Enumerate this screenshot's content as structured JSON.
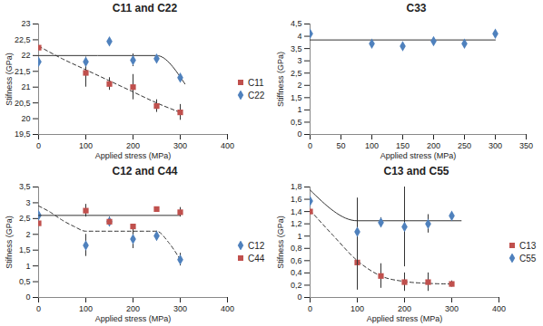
{
  "chart_data": [
    {
      "type": "scatter",
      "title": "C11 and C22",
      "x_label": "Applied stress (MPa)",
      "y_label": "Stifness (GPa)",
      "xlim": [
        0,
        400
      ],
      "xticks": [
        0,
        100,
        200,
        300,
        400
      ],
      "ylim": [
        19.5,
        23
      ],
      "yticks": [
        {
          "value": 19.5,
          "label": "19,5"
        },
        20,
        {
          "value": 20.5,
          "label": "20,5"
        },
        21,
        {
          "value": 21.5,
          "label": "21,5"
        },
        22,
        {
          "value": 22.5,
          "label": "22,5"
        },
        23
      ],
      "legend": "right",
      "x": [
        0,
        100,
        150,
        200,
        250,
        300
      ],
      "series": [
        {
          "name": "C11",
          "color": "#c0504d",
          "marker": "square",
          "values": [
            22.25,
            21.45,
            21.1,
            21.0,
            20.4,
            20.2
          ],
          "errors": [
            null,
            0.45,
            0.2,
            0.4,
            0.2,
            0.25
          ],
          "fit_x": [
            0,
            50,
            100,
            150,
            200,
            250,
            300
          ],
          "fit_values": [
            22.3,
            21.9,
            21.55,
            21.2,
            20.85,
            20.5,
            20.2
          ],
          "line_style": "dashed"
        },
        {
          "name": "C22",
          "color": "#4f81bd",
          "marker": "diamond",
          "values": [
            21.8,
            21.8,
            22.45,
            21.85,
            21.9,
            21.3
          ],
          "errors": [
            null,
            0.15,
            null,
            0.2,
            null,
            0.05
          ],
          "fit_x": [
            0,
            250,
            310
          ],
          "fit_values": [
            22.0,
            22.0,
            21.1
          ],
          "line_style": "solid"
        }
      ]
    },
    {
      "type": "scatter",
      "title": "C33",
      "x_label": "Applied stress (MPa)",
      "y_label": "Stiffness (GPa)",
      "xlim": [
        0,
        350
      ],
      "xticks": [
        0,
        50,
        100,
        150,
        200,
        250,
        300,
        350
      ],
      "ylim": [
        0,
        4.5
      ],
      "yticks": [
        0,
        {
          "value": 0.5,
          "label": "0,5"
        },
        1,
        {
          "value": 1.5,
          "label": "1,5"
        },
        2,
        {
          "value": 2.5,
          "label": "2,5"
        },
        3,
        {
          "value": 3.5,
          "label": "3,5"
        },
        4,
        {
          "value": 4.5,
          "label": "4,5"
        }
      ],
      "x": [
        0,
        100,
        150,
        200,
        250,
        300
      ],
      "series": [
        {
          "color": "#4f81bd",
          "marker": "diamond",
          "values": [
            4.1,
            3.7,
            3.6,
            3.8,
            3.7,
            4.1
          ],
          "errors": [
            null,
            null,
            0.1,
            0.05,
            null,
            null
          ],
          "fit_x": [
            0,
            300
          ],
          "fit_values": [
            3.85,
            3.85
          ],
          "line_style": "solid"
        }
      ]
    },
    {
      "type": "scatter",
      "title": "C12 and C44",
      "x_label": "Applied stress (MPa)",
      "y_label": "Stifness (GPa)",
      "xlim": [
        0,
        400
      ],
      "xticks": [
        0,
        100,
        200,
        300,
        400
      ],
      "ylim": [
        0,
        3.5
      ],
      "yticks": [
        0,
        {
          "value": 0.5,
          "label": "0,5"
        },
        1,
        {
          "value": 1.5,
          "label": "1,5"
        },
        2,
        {
          "value": 2.5,
          "label": "2,5"
        },
        3,
        {
          "value": 3.5,
          "label": "3,5"
        }
      ],
      "legend": "right",
      "x": [
        0,
        100,
        150,
        200,
        250,
        300
      ],
      "series": [
        {
          "name": "C12",
          "color": "#4f81bd",
          "marker": "diamond",
          "values": [
            2.6,
            1.65,
            2.4,
            1.85,
            1.95,
            1.2
          ],
          "errors": [
            null,
            0.35,
            0.15,
            0.3,
            0.15,
            0.2
          ],
          "fit_x": [
            0,
            25,
            50,
            75,
            100,
            250,
            275,
            300
          ],
          "fit_values": [
            2.9,
            2.7,
            2.45,
            2.25,
            2.1,
            2.1,
            1.75,
            1.2
          ],
          "line_style": "dashed"
        },
        {
          "name": "C44",
          "color": "#c0504d",
          "marker": "square",
          "values": [
            2.35,
            2.75,
            2.4,
            2.25,
            2.8,
            2.7
          ],
          "errors": [
            null,
            0.2,
            null,
            null,
            null,
            0.15
          ],
          "fit_x": [
            0,
            300
          ],
          "fit_values": [
            2.6,
            2.6
          ],
          "line_style": "solid"
        }
      ]
    },
    {
      "type": "scatter",
      "title": "C13 and C55",
      "x_label": "Applied stress (MPa)",
      "y_label": "Stifness (GPa)",
      "xlim": [
        0,
        400
      ],
      "xticks": [
        0,
        100,
        200,
        300,
        400
      ],
      "ylim": [
        0,
        1.8
      ],
      "yticks": [
        0,
        {
          "value": 0.2,
          "label": "0,2"
        },
        {
          "value": 0.4,
          "label": "0,4"
        },
        {
          "value": 0.6,
          "label": "0,6"
        },
        {
          "value": 0.8,
          "label": "0,8"
        },
        1,
        {
          "value": 1.2,
          "label": "1,2"
        },
        {
          "value": 1.4,
          "label": "1,4"
        },
        {
          "value": 1.6,
          "label": "1,6"
        },
        {
          "value": 1.8,
          "label": "1,8"
        }
      ],
      "legend": "right",
      "x": [
        0,
        100,
        150,
        200,
        250,
        300
      ],
      "series": [
        {
          "name": "C13",
          "color": "#c0504d",
          "marker": "square",
          "values": [
            1.4,
            0.57,
            0.35,
            0.25,
            0.25,
            0.22
          ],
          "errors": [
            null,
            0.45,
            0.2,
            0.15,
            0.15,
            0.05
          ],
          "fit_x": [
            0,
            50,
            100,
            150,
            200,
            250,
            300
          ],
          "fit_values": [
            1.42,
            1.0,
            0.6,
            0.35,
            0.26,
            0.23,
            0.22
          ],
          "line_style": "dashed"
        },
        {
          "name": "C55",
          "color": "#4f81bd",
          "marker": "diamond",
          "values": [
            1.57,
            1.07,
            1.22,
            1.15,
            1.2,
            1.33
          ],
          "errors": [
            null,
            0.55,
            0.08,
            0.65,
            0.15,
            null
          ],
          "fit_x": [
            0,
            100,
            320
          ],
          "fit_values": [
            1.75,
            1.25,
            1.25
          ],
          "line_style": "solid"
        }
      ]
    }
  ]
}
